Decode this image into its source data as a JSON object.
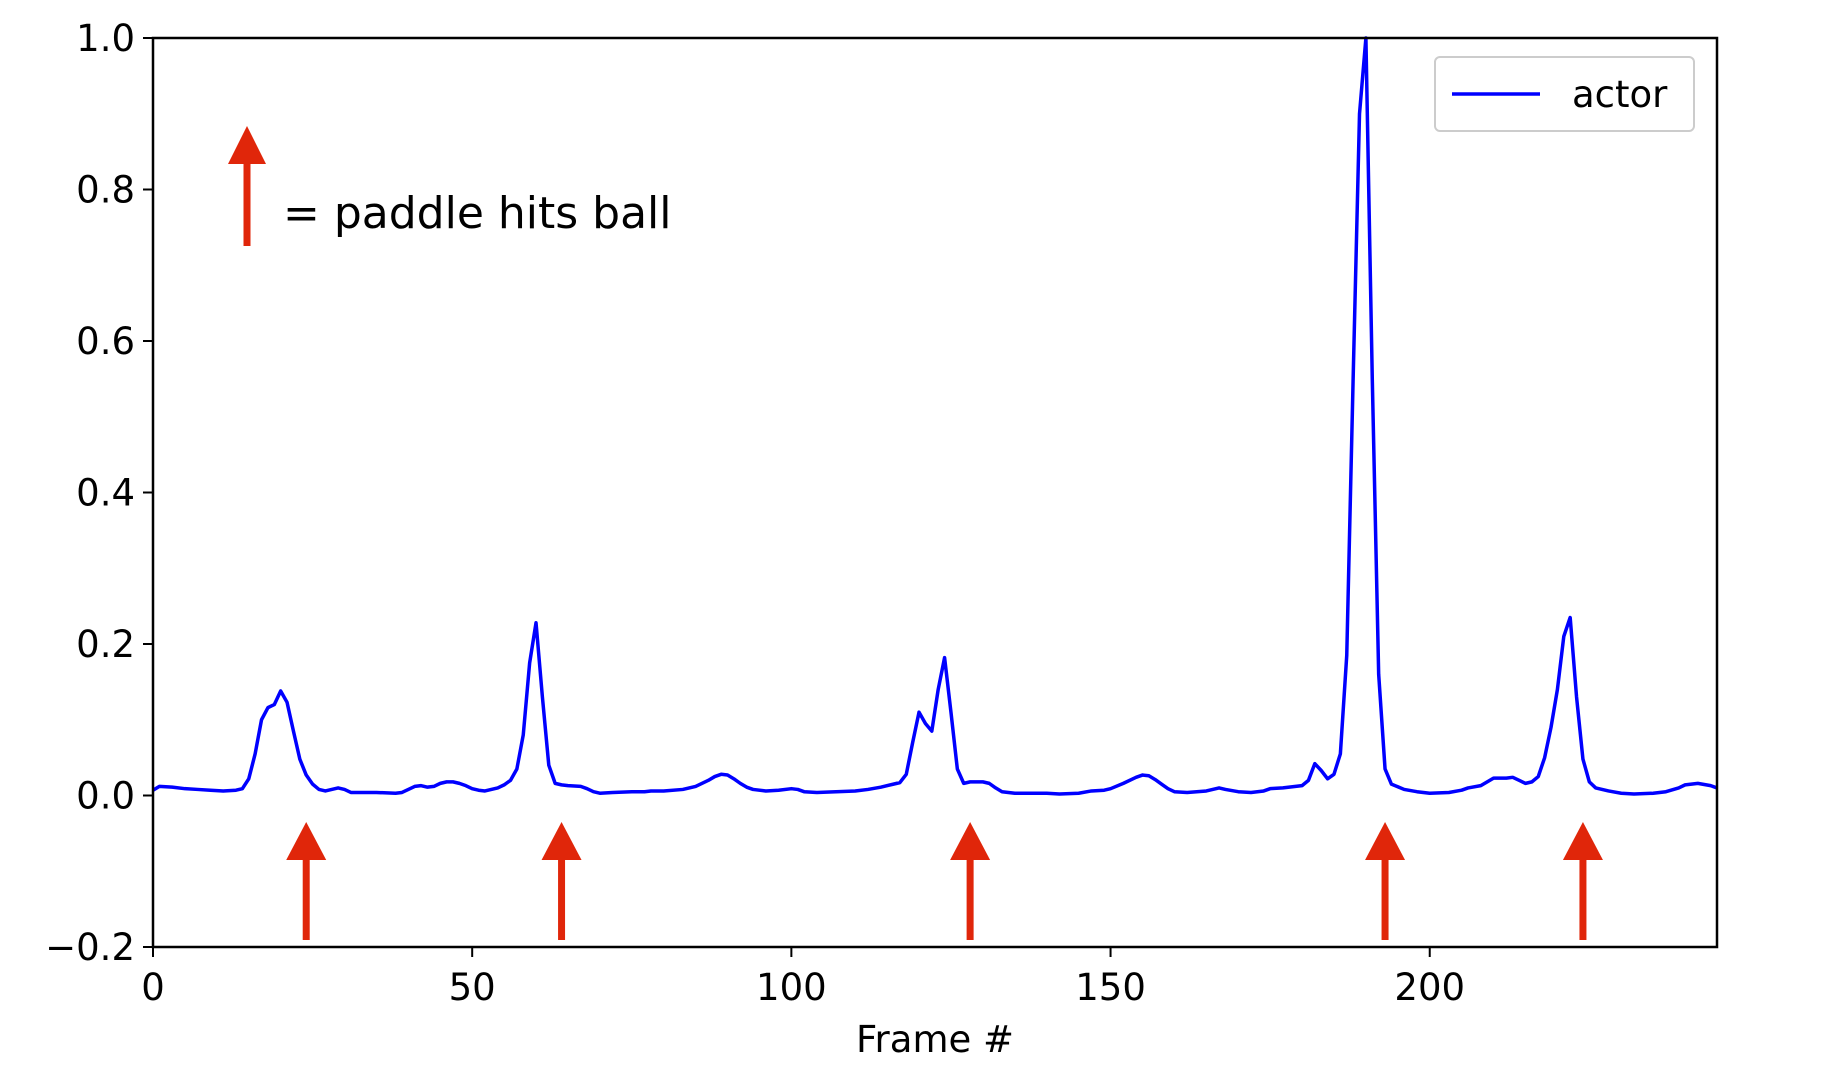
{
  "chart_data": {
    "type": "line",
    "xlabel": "Frame #",
    "annotation": "= paddle hits ball",
    "hit_frames": [
      24,
      64,
      128,
      193,
      224
    ],
    "hit_color": "#e0260a",
    "legend": "upper right",
    "xlim": [
      0,
      245
    ],
    "xticks": [
      0,
      50,
      100,
      150,
      200
    ],
    "ylim": [
      -0.2,
      1.0
    ],
    "yticks": [
      {
        "value": -0.2,
        "label": "−0.2"
      },
      {
        "value": 0,
        "label": "0.0"
      },
      {
        "value": 0.2,
        "label": "0.2"
      },
      {
        "value": 0.4,
        "label": "0.4"
      },
      {
        "value": 0.6,
        "label": "0.6"
      },
      {
        "value": 0.8,
        "label": "0.8"
      },
      {
        "value": 1.0,
        "label": "1.0"
      }
    ],
    "series": [
      {
        "name": "actor",
        "color": "#0000ff",
        "x": [
          0,
          1,
          3,
          5,
          7,
          9,
          11,
          13,
          14,
          15,
          16,
          17,
          18,
          19,
          20,
          21,
          22,
          23,
          24,
          25,
          26,
          27,
          28,
          29,
          30,
          31,
          35,
          38,
          39,
          40,
          41,
          42,
          43,
          44,
          45,
          46,
          47,
          48,
          49,
          50,
          51,
          52,
          53,
          54,
          55,
          56,
          57,
          58,
          59,
          60,
          61,
          62,
          63,
          64,
          65,
          67,
          68,
          69,
          70,
          72,
          75,
          77,
          78,
          80,
          83,
          85,
          87,
          88,
          89,
          90,
          91,
          92,
          93,
          94,
          96,
          98,
          100,
          101,
          102,
          104,
          107,
          110,
          112,
          114,
          116,
          117,
          118,
          119,
          120,
          121,
          122,
          123,
          124,
          125,
          126,
          127,
          128,
          130,
          131,
          132,
          133,
          135,
          140,
          142,
          145,
          147,
          149,
          150,
          152,
          154,
          155,
          156,
          157,
          158,
          159,
          160,
          162,
          165,
          166,
          167,
          168,
          170,
          172,
          174,
          175,
          177,
          180,
          181,
          182,
          183,
          184,
          185,
          186,
          187,
          188,
          189,
          190,
          191,
          192,
          193,
          194,
          196,
          198,
          200,
          203,
          205,
          206,
          208,
          209,
          210,
          212,
          213,
          214,
          215,
          216,
          217,
          218,
          219,
          220,
          221,
          222,
          223,
          224,
          225,
          226,
          228,
          230,
          232,
          235,
          237,
          239,
          240,
          242,
          244,
          245
        ],
        "values": [
          0.007,
          0.012,
          0.011,
          0.009,
          0.008,
          0.007,
          0.006,
          0.007,
          0.009,
          0.022,
          0.055,
          0.1,
          0.116,
          0.12,
          0.138,
          0.123,
          0.085,
          0.048,
          0.027,
          0.015,
          0.008,
          0.006,
          0.008,
          0.01,
          0.008,
          0.004,
          0.004,
          0.003,
          0.004,
          0.008,
          0.012,
          0.013,
          0.011,
          0.012,
          0.016,
          0.018,
          0.018,
          0.016,
          0.013,
          0.009,
          0.007,
          0.006,
          0.008,
          0.01,
          0.014,
          0.02,
          0.035,
          0.08,
          0.175,
          0.228,
          0.13,
          0.04,
          0.016,
          0.014,
          0.013,
          0.012,
          0.009,
          0.005,
          0.003,
          0.004,
          0.005,
          0.005,
          0.006,
          0.006,
          0.008,
          0.012,
          0.02,
          0.025,
          0.028,
          0.027,
          0.022,
          0.016,
          0.011,
          0.008,
          0.006,
          0.007,
          0.009,
          0.008,
          0.005,
          0.004,
          0.005,
          0.006,
          0.008,
          0.011,
          0.015,
          0.017,
          0.028,
          0.07,
          0.11,
          0.095,
          0.085,
          0.14,
          0.182,
          0.11,
          0.035,
          0.016,
          0.018,
          0.018,
          0.016,
          0.01,
          0.005,
          0.003,
          0.003,
          0.002,
          0.003,
          0.006,
          0.007,
          0.009,
          0.016,
          0.024,
          0.027,
          0.026,
          0.021,
          0.015,
          0.009,
          0.005,
          0.004,
          0.006,
          0.008,
          0.01,
          0.008,
          0.005,
          0.004,
          0.006,
          0.009,
          0.01,
          0.013,
          0.02,
          0.042,
          0.033,
          0.022,
          0.028,
          0.055,
          0.185,
          0.55,
          0.9,
          1.0,
          0.55,
          0.16,
          0.035,
          0.015,
          0.008,
          0.005,
          0.003,
          0.004,
          0.007,
          0.01,
          0.013,
          0.018,
          0.023,
          0.023,
          0.024,
          0.02,
          0.016,
          0.018,
          0.025,
          0.05,
          0.09,
          0.14,
          0.21,
          0.235,
          0.13,
          0.048,
          0.018,
          0.01,
          0.006,
          0.003,
          0.002,
          0.003,
          0.005,
          0.01,
          0.014,
          0.016,
          0.013,
          0.01
        ]
      }
    ]
  }
}
